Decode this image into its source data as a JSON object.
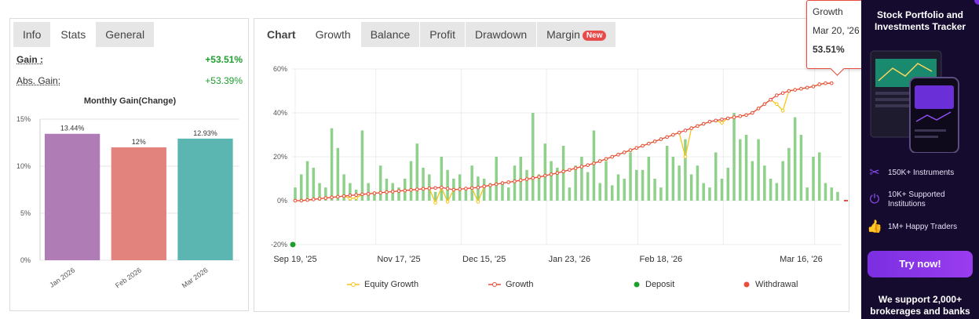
{
  "left": {
    "tabs": [
      {
        "label": "Info",
        "state": "inactive"
      },
      {
        "label": "Stats",
        "state": "active"
      },
      {
        "label": "General",
        "state": "inactive"
      }
    ],
    "stats": [
      {
        "label": "Gain :",
        "value": "+53.51%"
      },
      {
        "label": "Abs. Gain:",
        "value": "+53.39%"
      }
    ],
    "monthly_title": "Monthly Gain(Change)"
  },
  "right": {
    "tabs": [
      {
        "label": "Chart"
      },
      {
        "label": "Growth"
      },
      {
        "label": "Balance"
      },
      {
        "label": "Profit"
      },
      {
        "label": "Drawdown"
      },
      {
        "label": "Margin",
        "badge": "New"
      }
    ],
    "legend": [
      {
        "label": "Equity Growth",
        "color": "#f5c518"
      },
      {
        "label": "Growth",
        "color": "#e74c3c"
      },
      {
        "label": "Deposit",
        "color": "#1e9e2e"
      },
      {
        "label": "Withdrawal",
        "color": "#e74c3c"
      }
    ]
  },
  "tooltip": {
    "series": "Growth",
    "date": "Mar 20, '26",
    "value": "53.51%"
  },
  "ad": {
    "title": "Stock Portfolio and Investments Tracker",
    "features": [
      {
        "icon": "tools-icon",
        "text": "150K+ Instruments"
      },
      {
        "icon": "plug-icon",
        "text": "10K+ Supported Institutions"
      },
      {
        "icon": "thumbs-up-icon",
        "text": "1M+ Happy Traders"
      }
    ],
    "button": "Try now!",
    "footer": "We support 2,000+ brokerages and banks"
  },
  "chart_data": [
    {
      "type": "bar",
      "title": "Monthly Gain(Change)",
      "categories": [
        "Jan 2026",
        "Feb 2026",
        "Mar 2026"
      ],
      "values": [
        13.44,
        12,
        12.93
      ],
      "value_labels": [
        "13.44%",
        "12%",
        "12.93%"
      ],
      "colors": [
        "#b07cb5",
        "#e2837e",
        "#5bb6b2"
      ],
      "ylim": [
        0,
        15
      ],
      "yticks": [
        "0%",
        "5%",
        "10%",
        "15%"
      ],
      "grid": true
    },
    {
      "type": "line",
      "x_ticks": [
        "Sep 19, '25",
        "Nov 17, '25",
        "Dec 15, '25",
        "Jan 23, '26",
        "Feb 18, '26",
        "Mar 16, '26"
      ],
      "yticks": [
        "-20%",
        "0%",
        "20%",
        "40%",
        "60%"
      ],
      "ylim": [
        -20,
        60
      ],
      "series": [
        {
          "name": "Growth",
          "color": "#e74c3c",
          "values": [
            0,
            0,
            0.3,
            0.6,
            0.9,
            1.2,
            1.5,
            1.8,
            2.1,
            2.4,
            2.6,
            2.9,
            3.1,
            3.4,
            3.6,
            3.9,
            4.1,
            4.4,
            4.6,
            4.9,
            5.1,
            5.4,
            5.6,
            5.8,
            6.0,
            5.5,
            5.0,
            5.2,
            5.5,
            5.8,
            6.0,
            6.5,
            7.0,
            7.5,
            8.0,
            8.4,
            8.8,
            9.3,
            9.8,
            10.3,
            10.8,
            11.4,
            12.0,
            12.6,
            13.3,
            14.0,
            14.8,
            15.5,
            16.2,
            17.0,
            18.0,
            19.0,
            20.0,
            21.0,
            22.0,
            23.0,
            24.0,
            25.0,
            26.0,
            27.0,
            28.0,
            29.0,
            30.0,
            31.0,
            32.0,
            33.0,
            34.0,
            35.0,
            36.0,
            36.5,
            37.0,
            37.5,
            38.0,
            38.5,
            39.0,
            40.0,
            42.0,
            44.0,
            46.0,
            48.0,
            49.0,
            50.0,
            50.5,
            51.0,
            51.5,
            52.0,
            53.0,
            53.5,
            53.51
          ]
        },
        {
          "name": "Equity Growth",
          "color": "#f5c518",
          "values": [
            0,
            0,
            0.3,
            0.6,
            0.9,
            1.2,
            1.5,
            1.8,
            2.1,
            1.0,
            1.2,
            2.9,
            3.1,
            3.4,
            3.6,
            3.9,
            4.1,
            4.4,
            4.6,
            4.9,
            5.1,
            5.4,
            5.6,
            -1.0,
            6.0,
            -0.5,
            5.0,
            5.2,
            5.5,
            5.8,
            -0.5,
            6.5,
            7.0,
            7.5,
            8.0,
            8.4,
            8.8,
            9.3,
            9.8,
            10.3,
            10.8,
            11.4,
            12.0,
            12.6,
            13.3,
            14.0,
            14.8,
            15.5,
            16.2,
            17.0,
            18.0,
            19.0,
            20.0,
            21.0,
            22.0,
            23.0,
            24.0,
            25.0,
            26.0,
            27.0,
            28.0,
            29.0,
            30.0,
            31.0,
            20.0,
            33.0,
            34.0,
            35.0,
            36.0,
            36.5,
            35.5,
            37.5,
            38.0,
            38.5,
            39.0,
            40.0,
            42.0,
            44.0,
            46.0,
            44.0,
            41.0,
            50.0,
            50.5,
            51.0,
            51.5,
            52.0,
            53.0,
            53.5,
            53.51
          ]
        }
      ],
      "bars": [
        6,
        12,
        18,
        15,
        8,
        6,
        33,
        24,
        12,
        8,
        5,
        32,
        8,
        4,
        16,
        10,
        8,
        6,
        10,
        18,
        26,
        15,
        12,
        4,
        20,
        14,
        10,
        12,
        5,
        16,
        11,
        10,
        8,
        20,
        8,
        6,
        16,
        20,
        14,
        40,
        12,
        26,
        18,
        15,
        25,
        6,
        16,
        20,
        13,
        32,
        8,
        18,
        7,
        12,
        10,
        22,
        14,
        14,
        20,
        10,
        6,
        25,
        20,
        16,
        28,
        12,
        16,
        8,
        6,
        22,
        10,
        15,
        40,
        28,
        30,
        18,
        28,
        16,
        10,
        8,
        18,
        24,
        38,
        30,
        6,
        20,
        22,
        8,
        6,
        4
      ],
      "markers": [
        {
          "type": "Deposit",
          "x": 0,
          "y": -20
        },
        {
          "type": "Withdrawal",
          "x": 89,
          "y": 0
        }
      ]
    }
  ]
}
